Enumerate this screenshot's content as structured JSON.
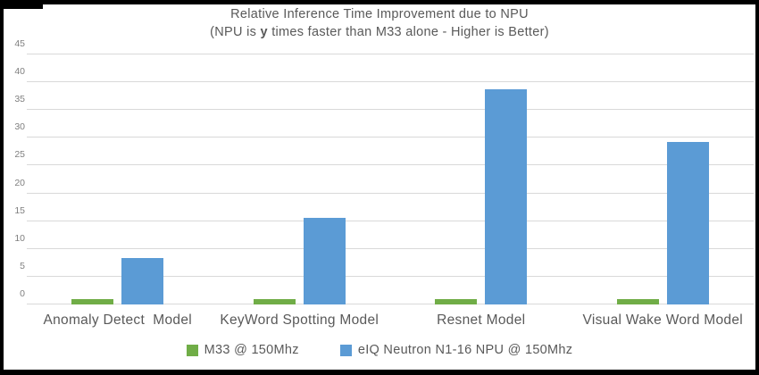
{
  "title": "Relative Inference Time Improvement due to NPU",
  "subtitle": {
    "prefix": "(NPU is ",
    "bold": "y",
    "suffix": " times faster than M33 alone - Higher is Better)",
    "full": "(NPU is y times faster than M33 alone - Higher is Better)"
  },
  "colors": {
    "m33_green": "#70AD47",
    "npu_blue": "#5B9BD5",
    "gridline": "#d9d9d9",
    "text_gray": "#595959",
    "tick_gray": "#7f7f7f",
    "frame_black": "#000000"
  },
  "chart_data": {
    "type": "bar",
    "title": "Relative Inference Time Improvement due to NPU",
    "subtitle": "(NPU is y times faster than M33 alone - Higher is Better)",
    "categories": [
      "Anomaly Detect  Model",
      "KeyWord Spotting Model",
      "Resnet Model",
      "Visual Wake Word Model"
    ],
    "series": [
      {
        "name": "M33 @ 150Mhz",
        "color": "#70AD47",
        "values": [
          1,
          1,
          1,
          1
        ]
      },
      {
        "name": "eIQ Neutron N1-16 NPU @ 150Mhz",
        "color": "#5B9BD5",
        "values": [
          8.4,
          15.6,
          38.7,
          29.3
        ]
      }
    ],
    "xlabel": "",
    "ylabel": "",
    "ylim": [
      0,
      45
    ],
    "ytick_step": 5,
    "grid": true,
    "legend_position": "bottom"
  }
}
